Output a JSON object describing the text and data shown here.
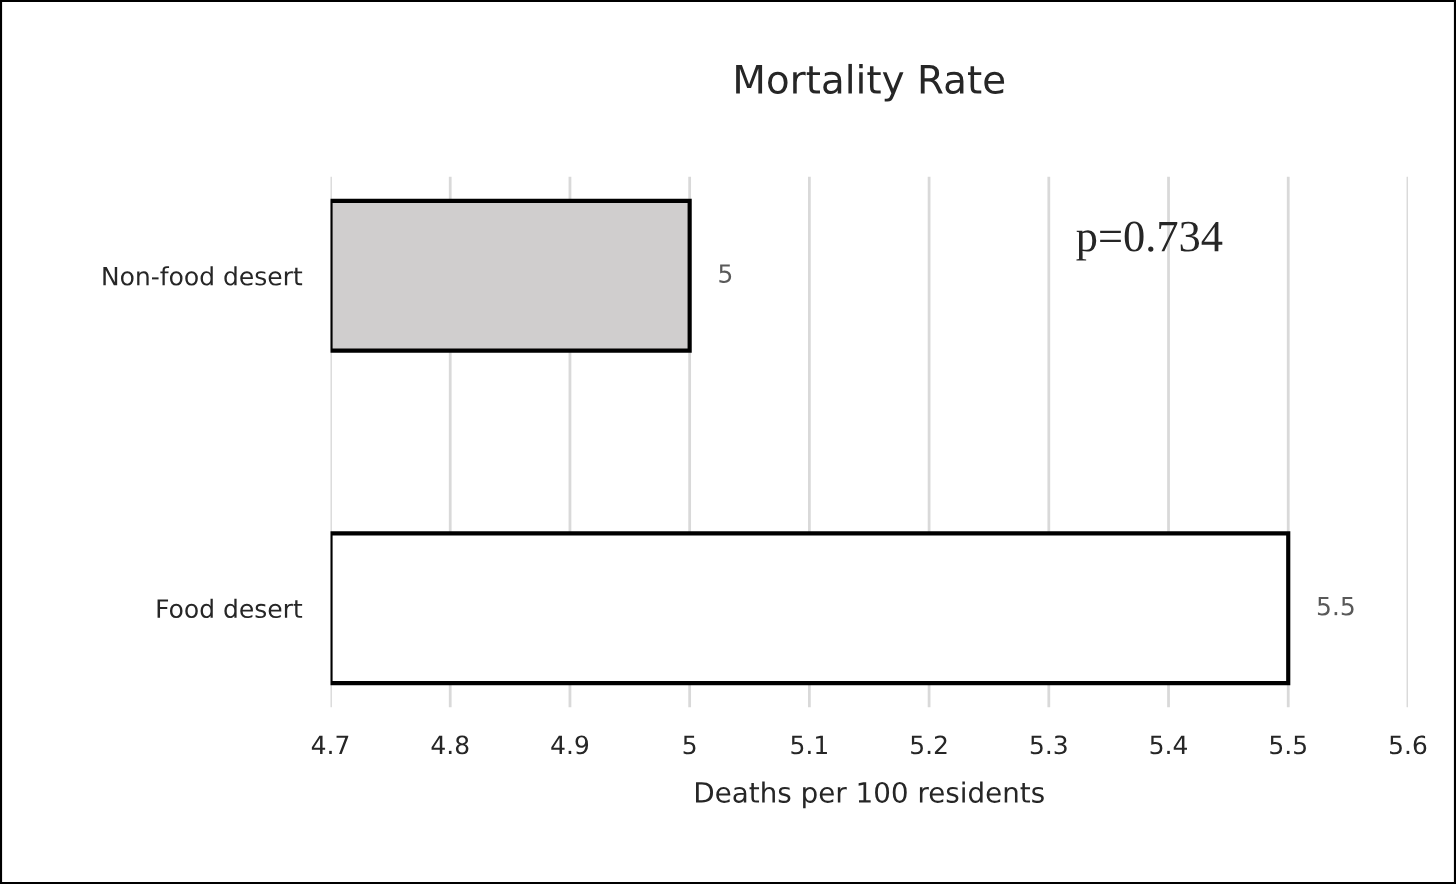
{
  "chart_data": {
    "type": "bar",
    "orientation": "horizontal",
    "title": "Mortality Rate",
    "xlabel": "Deaths per 100 residents",
    "categories": [
      "Non-food desert",
      "Food desert"
    ],
    "values": [
      5,
      5.5
    ],
    "colors": [
      "#d0cece",
      "#ffffff"
    ],
    "xlim": [
      4.7,
      5.6
    ],
    "xticks": [
      4.7,
      4.8,
      4.9,
      5,
      5.1,
      5.2,
      5.3,
      5.4,
      5.5,
      5.6
    ],
    "grid": "x",
    "data_labels": true,
    "annotations": [
      "p=0.734"
    ]
  }
}
